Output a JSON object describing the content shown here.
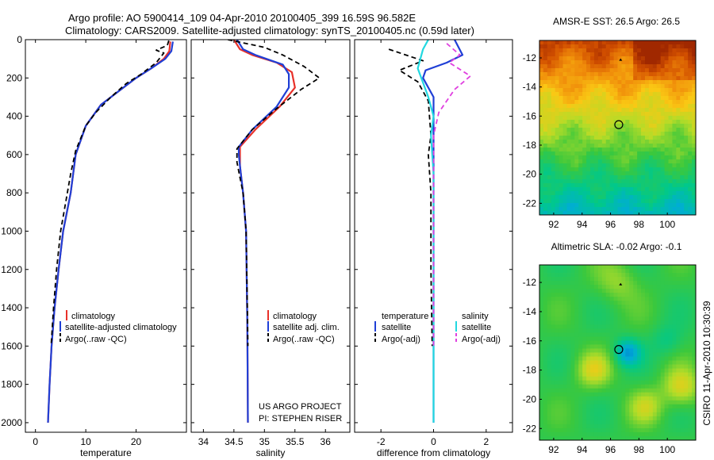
{
  "header": {
    "title_line1": "Argo profile: AO 5900414_109 04-Apr-2010 20100405_399 16.59S 96.582E",
    "title_line2": "Climatology: CARS2009. Satellite-adjusted climatology: synTS_20100405.nc (0.59d later)"
  },
  "side_label": "CSIRO 11-Apr-2010 10:30:39",
  "footer": {
    "project": "US ARGO PROJECT",
    "pi": "PI: STEPHEN RISER"
  },
  "colors": {
    "climatology": "#e8312a",
    "satellite": "#1f3fd6",
    "argo": "#000000",
    "sat_diff_s": "#22d8e0",
    "argo_diff_s": "#e040e0"
  },
  "chart_data": [
    {
      "type": "line",
      "name": "temperature-profile",
      "xlabel": "temperature",
      "ylabel": "",
      "xlim": [
        -2,
        30
      ],
      "ylim": [
        2050,
        0
      ],
      "xticks": [
        0,
        10,
        20
      ],
      "yticks": [
        0,
        200,
        400,
        600,
        800,
        1000,
        1200,
        1400,
        1600,
        1800,
        2000
      ],
      "legend": [
        "climatology",
        "satellite-adjusted climatology",
        "Argo(..raw -QC)"
      ],
      "series": [
        {
          "name": "climatology",
          "color": "#e8312a",
          "points": [
            [
              26.8,
              10
            ],
            [
              26.6,
              60
            ],
            [
              25.5,
              100
            ],
            [
              23,
              150
            ],
            [
              20,
              200
            ],
            [
              17,
              260
            ],
            [
              13,
              340
            ],
            [
              10,
              450
            ],
            [
              8,
              600
            ],
            [
              7,
              800
            ],
            [
              5.5,
              1000
            ],
            [
              4.6,
              1200
            ],
            [
              3.8,
              1400
            ],
            [
              3.2,
              1600
            ],
            [
              2.8,
              1800
            ],
            [
              2.5,
              2000
            ]
          ]
        },
        {
          "name": "satellite",
          "color": "#1f3fd6",
          "points": [
            [
              27.3,
              10
            ],
            [
              27,
              60
            ],
            [
              25.8,
              100
            ],
            [
              23,
              150
            ],
            [
              20,
              200
            ],
            [
              17,
              260
            ],
            [
              13,
              340
            ],
            [
              10,
              450
            ],
            [
              8,
              600
            ],
            [
              7,
              800
            ],
            [
              5.5,
              1000
            ],
            [
              4.6,
              1200
            ],
            [
              3.8,
              1400
            ],
            [
              3.2,
              1600
            ],
            [
              2.8,
              1800
            ],
            [
              2.5,
              2000
            ]
          ]
        },
        {
          "name": "argo",
          "color": "#000000",
          "dashed": true,
          "points": [
            [
              26.5,
              5
            ],
            [
              26.2,
              30
            ],
            [
              24,
              55
            ],
            [
              25.5,
              70
            ],
            [
              24,
              120
            ],
            [
              21,
              180
            ],
            [
              18,
              230
            ],
            [
              15,
              300
            ],
            [
              12,
              380
            ],
            [
              10,
              450
            ],
            [
              8,
              580
            ],
            [
              7,
              700
            ],
            [
              6,
              850
            ],
            [
              5,
              1000
            ],
            [
              4.2,
              1200
            ],
            [
              3.6,
              1400
            ],
            [
              3.1,
              1600
            ]
          ]
        }
      ]
    },
    {
      "type": "line",
      "name": "salinity-profile",
      "xlabel": "salinity",
      "xlim": [
        33.8,
        36.4
      ],
      "ylim": [
        2050,
        0
      ],
      "xticks": [
        34,
        34.5,
        35,
        35.5,
        36
      ],
      "legend": [
        "climatology",
        "satellite adj. clim.",
        "Argo(..raw -QC)"
      ],
      "series": [
        {
          "name": "climatology",
          "color": "#e8312a",
          "points": [
            [
              34.5,
              0
            ],
            [
              34.6,
              50
            ],
            [
              34.8,
              80
            ],
            [
              35.2,
              120
            ],
            [
              35.45,
              170
            ],
            [
              35.5,
              250
            ],
            [
              35.25,
              350
            ],
            [
              34.85,
              470
            ],
            [
              34.6,
              560
            ],
            [
              34.6,
              600
            ],
            [
              34.6,
              660
            ],
            [
              34.65,
              800
            ],
            [
              34.7,
              1000
            ],
            [
              34.72,
              1500
            ],
            [
              34.73,
              2000
            ]
          ]
        },
        {
          "name": "satellite",
          "color": "#1f3fd6",
          "points": [
            [
              34.55,
              0
            ],
            [
              34.65,
              50
            ],
            [
              34.85,
              80
            ],
            [
              35.3,
              130
            ],
            [
              35.4,
              180
            ],
            [
              35.4,
              250
            ],
            [
              35.2,
              350
            ],
            [
              34.8,
              470
            ],
            [
              34.58,
              560
            ],
            [
              34.58,
              600
            ],
            [
              34.6,
              660
            ],
            [
              34.65,
              800
            ],
            [
              34.7,
              1000
            ],
            [
              34.72,
              1500
            ],
            [
              34.73,
              2000
            ]
          ]
        },
        {
          "name": "argo",
          "color": "#000000",
          "dashed": true,
          "points": [
            [
              34.4,
              0
            ],
            [
              35.0,
              40
            ],
            [
              35.3,
              80
            ],
            [
              35.65,
              140
            ],
            [
              35.9,
              200
            ],
            [
              35.6,
              260
            ],
            [
              35.2,
              360
            ],
            [
              34.8,
              470
            ],
            [
              34.55,
              570
            ],
            [
              34.55,
              640
            ],
            [
              34.6,
              720
            ],
            [
              34.65,
              800
            ],
            [
              34.7,
              1000
            ],
            [
              34.72,
              1400
            ],
            [
              34.73,
              1600
            ]
          ]
        }
      ]
    },
    {
      "type": "line",
      "name": "difference-profile",
      "xlabel": "difference from climatology",
      "xlim": [
        -3,
        3
      ],
      "ylim": [
        2050,
        0
      ],
      "xticks": [
        -2,
        0,
        2
      ],
      "legend_left": {
        "heading": "temperature",
        "items": [
          "satellite",
          "Argo(-adj)"
        ]
      },
      "legend_right": {
        "heading": "salinity",
        "items": [
          "satellite",
          "Argo(-adj)"
        ]
      },
      "series": [
        {
          "name": "temperature satellite",
          "color": "#1f3fd6",
          "points": [
            [
              0.8,
              0
            ],
            [
              1.1,
              80
            ],
            [
              0.5,
              120
            ],
            [
              -0.3,
              160
            ],
            [
              -0.4,
              200
            ],
            [
              0,
              300
            ],
            [
              0,
              500
            ],
            [
              0,
              1000
            ],
            [
              0,
              1500
            ],
            [
              0,
              2000
            ]
          ]
        },
        {
          "name": "temperature argo",
          "color": "#000000",
          "dashed": true,
          "points": [
            [
              -1.7,
              50
            ],
            [
              -0.4,
              110
            ],
            [
              -1.3,
              160
            ],
            [
              -0.6,
              220
            ],
            [
              -0.2,
              320
            ],
            [
              -0.1,
              500
            ],
            [
              -0.2,
              600
            ],
            [
              -0.1,
              800
            ],
            [
              -0.1,
              1000
            ],
            [
              -0.1,
              1200
            ],
            [
              -0.05,
              1600
            ]
          ]
        },
        {
          "name": "salinity satellite",
          "color": "#22d8e0",
          "points": [
            [
              -0.2,
              0
            ],
            [
              -0.4,
              50
            ],
            [
              -0.6,
              150
            ],
            [
              -0.2,
              300
            ],
            [
              0,
              400
            ],
            [
              -0.1,
              500
            ],
            [
              0,
              700
            ],
            [
              0,
              1000
            ],
            [
              0,
              1500
            ],
            [
              0,
              2000
            ]
          ]
        },
        {
          "name": "salinity argo",
          "color": "#e040e0",
          "dashed": true,
          "points": [
            [
              0.5,
              20
            ],
            [
              1.0,
              80
            ],
            [
              0.6,
              120
            ],
            [
              1.4,
              190
            ],
            [
              0.8,
              260
            ],
            [
              0.2,
              380
            ],
            [
              0,
              500
            ],
            [
              0,
              800
            ],
            [
              0,
              1000
            ],
            [
              0,
              1200
            ],
            [
              0,
              1600
            ]
          ]
        }
      ]
    },
    {
      "type": "heatmap",
      "name": "sst-map",
      "title": "AMSR-E SST: 26.5 Argo: 26.5",
      "xlim": [
        91,
        102
      ],
      "ylim": [
        -22.8,
        -10.8
      ],
      "xticks": [
        "92",
        "94",
        "96",
        "98",
        "100"
      ],
      "yticks": [
        "-12",
        "-14",
        "-16",
        "-18",
        "-20",
        "-22"
      ],
      "marker": {
        "lon": 96.58,
        "lat": -16.59
      }
    },
    {
      "type": "heatmap",
      "name": "sla-map",
      "title": "Altimetric SLA: -0.02 Argo: -0.1",
      "xlim": [
        91,
        102
      ],
      "ylim": [
        -22.8,
        -10.8
      ],
      "xticks": [
        "92",
        "94",
        "96",
        "98",
        "100"
      ],
      "yticks": [
        "-12",
        "-14",
        "-16",
        "-18",
        "-20",
        "-22"
      ],
      "marker": {
        "lon": 96.58,
        "lat": -16.59
      }
    }
  ]
}
